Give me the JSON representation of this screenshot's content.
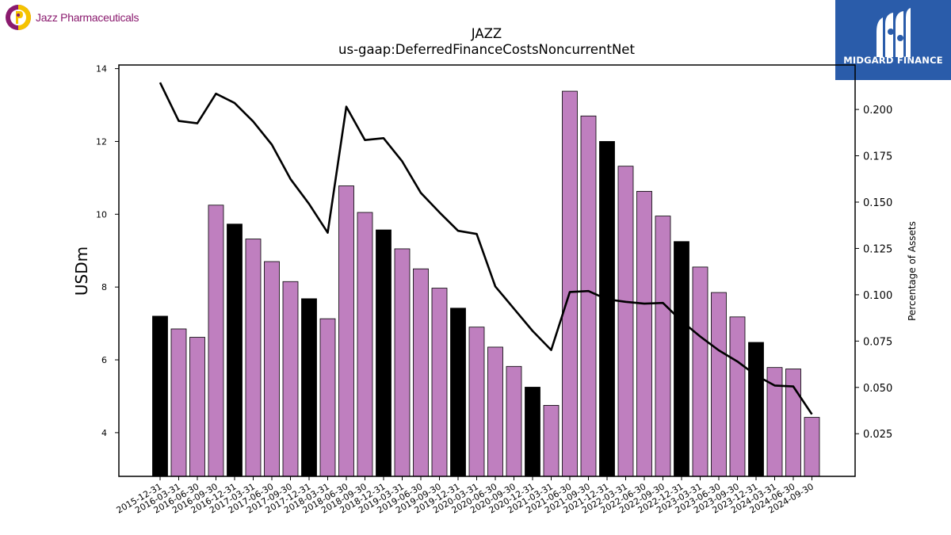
{
  "branding": {
    "company_name": "Jazz Pharmaceuticals",
    "publisher": "MIDGARD FINANCE"
  },
  "chart_data": {
    "type": "bar",
    "title": "JAZZ",
    "subtitle": "us-gaap:DeferredFinanceCostsNoncurrentNet",
    "ylabel": "USDm",
    "y2label": "Percentage of Assets",
    "ylim": [
      2.8,
      14.1
    ],
    "y2lim": [
      0.002,
      0.224
    ],
    "yticks": [
      4,
      6,
      8,
      10,
      12,
      14
    ],
    "y2ticks": [
      "0.025",
      "0.050",
      "0.075",
      "0.100",
      "0.125",
      "0.150",
      "0.175",
      "0.200"
    ],
    "grid": false,
    "colors": {
      "year_end_bar": "#000000",
      "quarter_bar": "#bf7fbf",
      "line": "#000000"
    },
    "categories": [
      "2015-12-31",
      "2016-03-31",
      "2016-06-30",
      "2016-09-30",
      "2016-12-31",
      "2017-03-31",
      "2017-06-30",
      "2017-09-30",
      "2017-12-31",
      "2018-03-31",
      "2018-06-30",
      "2018-09-30",
      "2018-12-31",
      "2019-03-31",
      "2019-06-30",
      "2019-09-30",
      "2019-12-31",
      "2020-03-31",
      "2020-06-30",
      "2020-09-30",
      "2020-12-31",
      "2021-03-31",
      "2021-06-30",
      "2021-09-30",
      "2021-12-31",
      "2022-03-31",
      "2022-06-30",
      "2022-09-30",
      "2022-12-31",
      "2023-03-31",
      "2023-06-30",
      "2023-09-30",
      "2023-12-31",
      "2024-03-31",
      "2024-06-30",
      "2024-09-30"
    ],
    "series": [
      {
        "type": "bar",
        "values": [
          7.2,
          6.85,
          6.62,
          10.25,
          9.73,
          9.32,
          8.7,
          8.15,
          7.68,
          7.13,
          10.78,
          10.05,
          9.57,
          9.05,
          8.5,
          7.97,
          7.42,
          6.9,
          6.35,
          5.82,
          5.25,
          4.75,
          13.38,
          12.7,
          12.0,
          11.32,
          10.63,
          9.95,
          9.25,
          8.55,
          7.85,
          7.18,
          6.48,
          5.79,
          5.75,
          4.42
        ]
      },
      {
        "type": "line",
        "axis": "right",
        "values": [
          0.2145,
          0.1938,
          0.1925,
          0.2085,
          0.2035,
          0.1935,
          0.181,
          0.1625,
          0.149,
          0.1335,
          0.2015,
          0.1835,
          0.1845,
          0.172,
          0.155,
          0.1445,
          0.1345,
          0.1328,
          0.1045,
          0.0925,
          0.0805,
          0.0702,
          0.1015,
          0.102,
          0.0975,
          0.0962,
          0.0952,
          0.0956,
          0.0858,
          0.0775,
          0.07,
          0.064,
          0.0565,
          0.051,
          0.0505,
          0.0355
        ]
      }
    ]
  }
}
